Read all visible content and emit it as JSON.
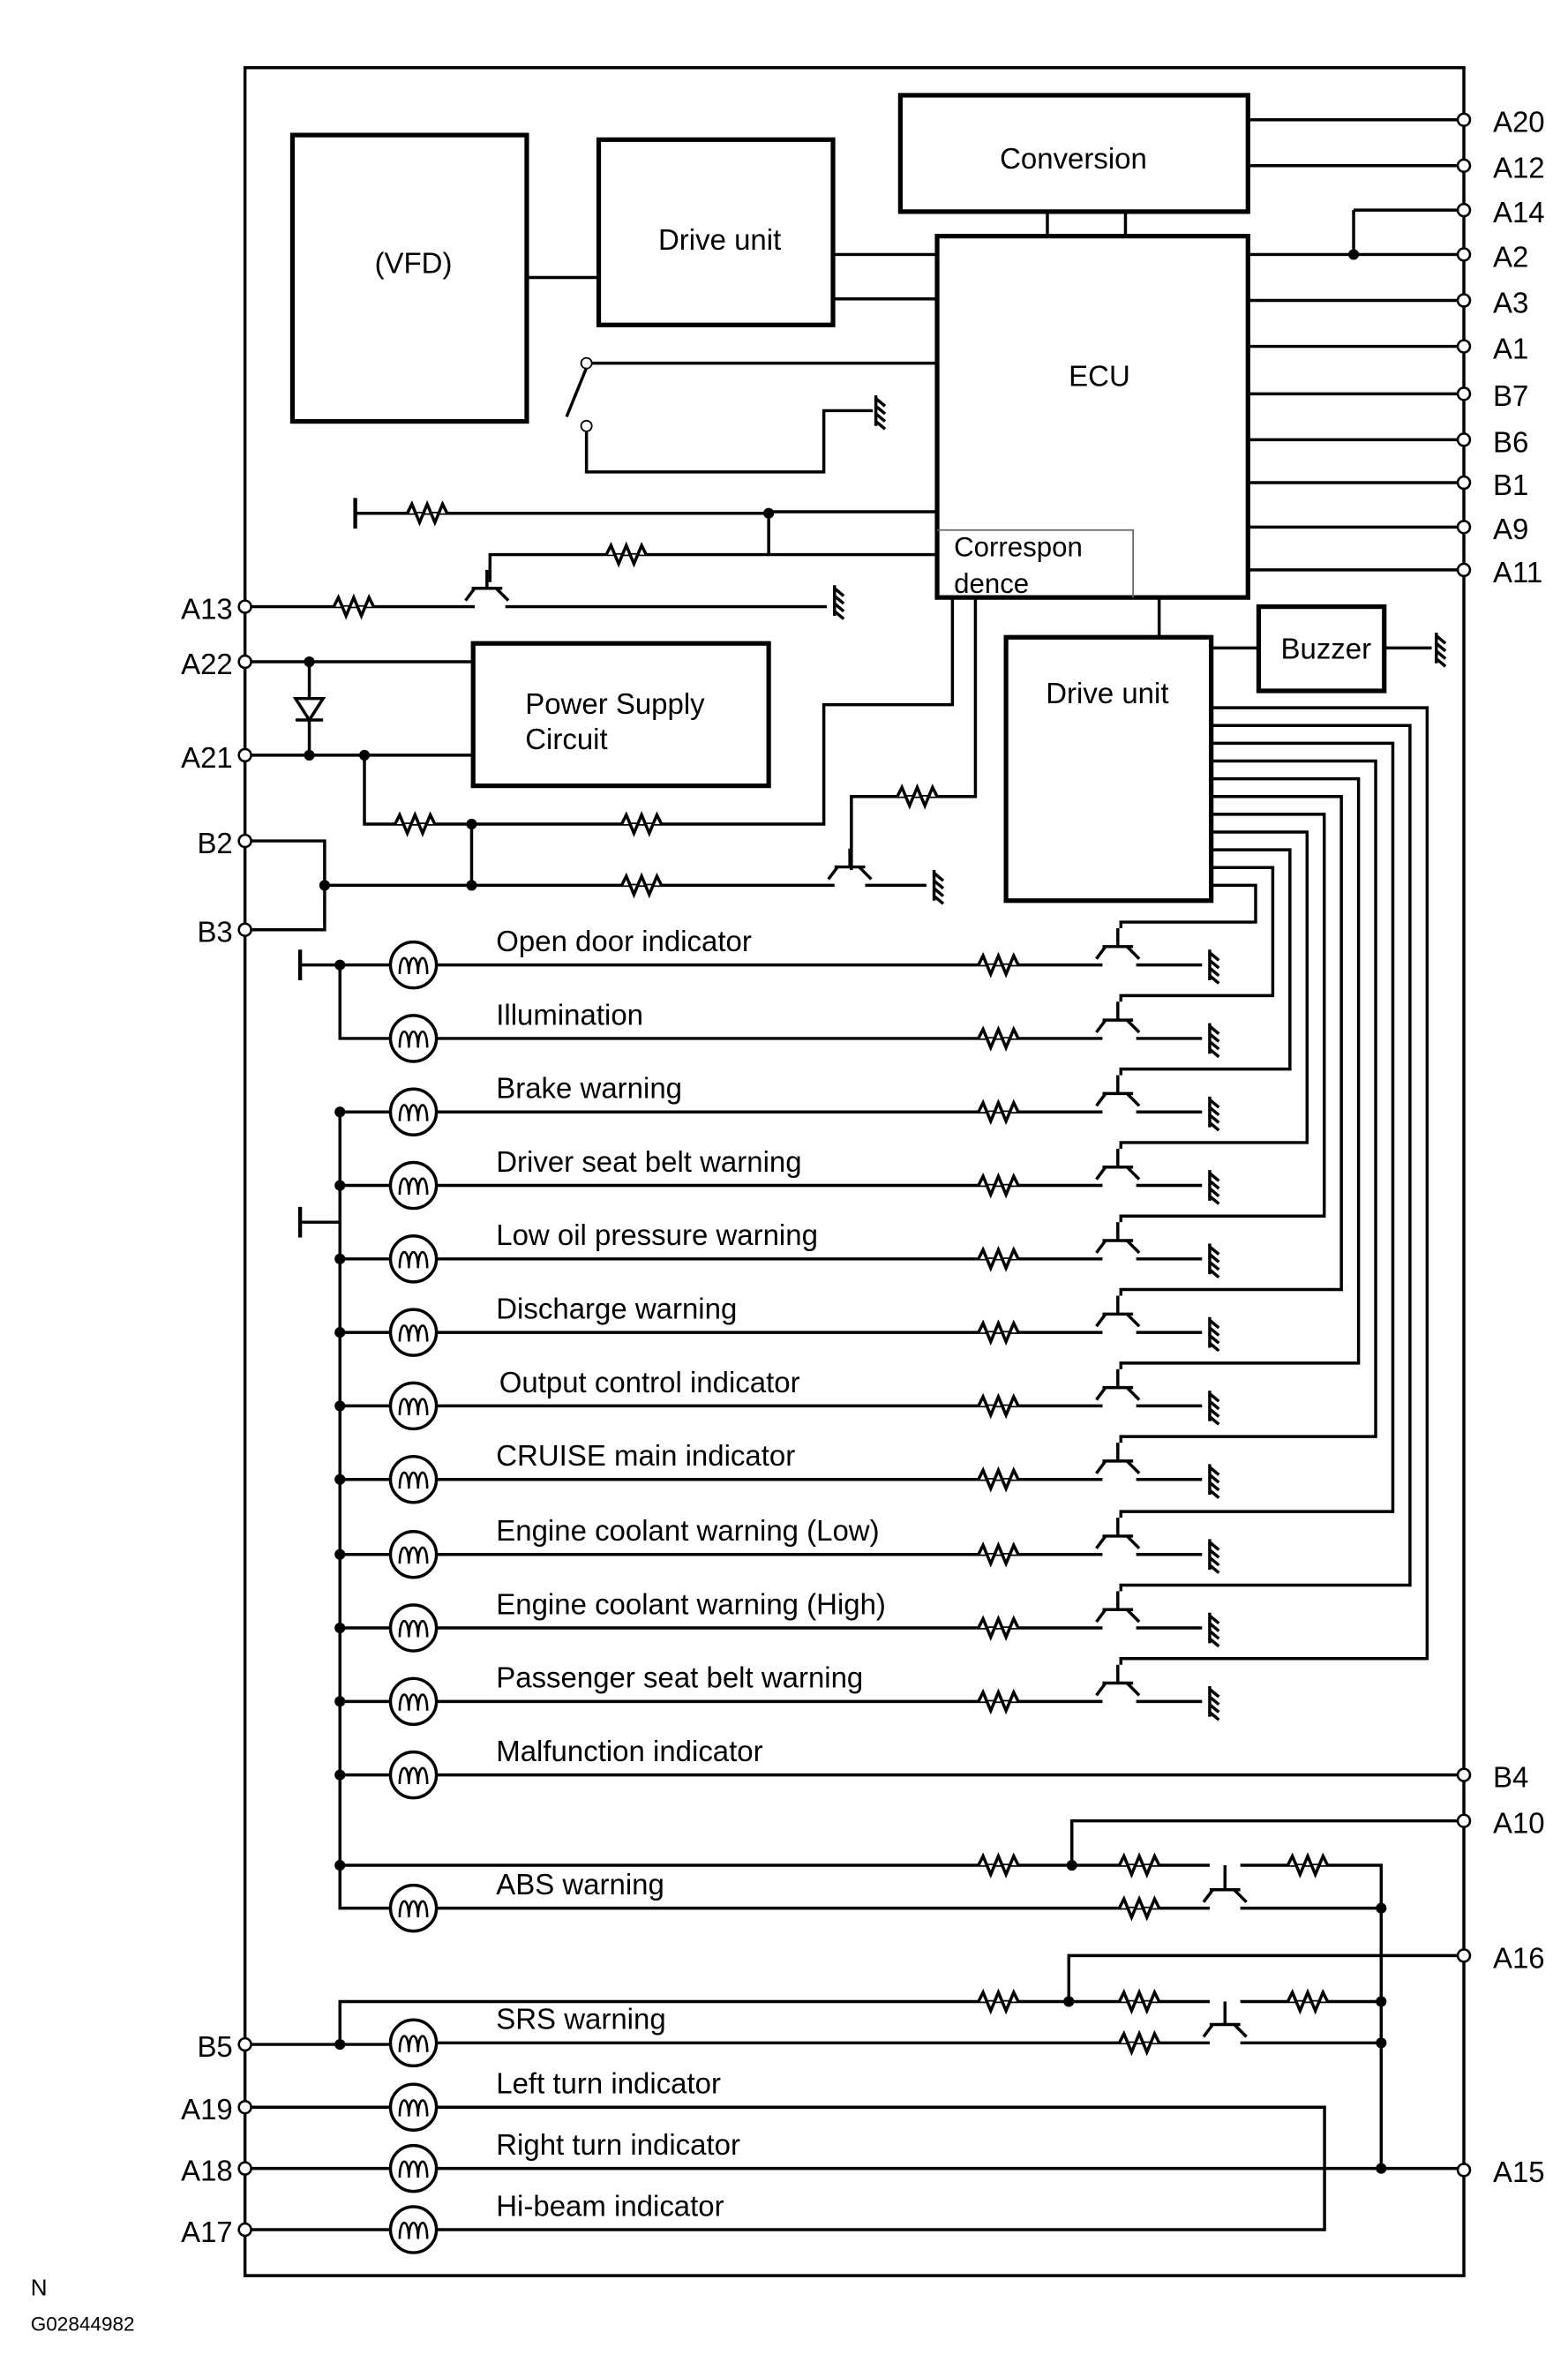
{
  "blocks": {
    "vfd": "(VFD)",
    "drive_unit_top": "Drive unit",
    "conversion": "Conversion",
    "ecu": "ECU",
    "correspondence_line1": "Correspon",
    "correspondence_line2": "dence",
    "buzzer": "Buzzer",
    "power_supply_line1": "Power Supply",
    "power_supply_line2": "Circuit",
    "drive_unit_bottom": "Drive unit"
  },
  "right_terminals": [
    "A20",
    "A12",
    "A14",
    "A2",
    "A3",
    "A1",
    "B7",
    "B6",
    "B1",
    "A9",
    "A11",
    "B4",
    "A10",
    "A16",
    "A15"
  ],
  "left_terminals": [
    "A13",
    "A22",
    "A21",
    "B2",
    "B3",
    "B5",
    "A19",
    "A18",
    "A17"
  ],
  "indicators": [
    "Open door indicator",
    "Illumination",
    "Brake warning",
    "Driver seat belt warning",
    "Low oil pressure warning",
    "Discharge warning",
    "Output control indicator",
    "CRUISE main indicator",
    "Engine coolant warning (Low)",
    "Engine coolant warning (High)",
    "Passenger seat belt warning",
    "Malfunction indicator",
    "ABS warning",
    "SRS warning",
    "Left turn indicator",
    "Right turn indicator",
    "Hi-beam  indicator"
  ],
  "footer": {
    "mark": "N",
    "code": "G02844982"
  }
}
